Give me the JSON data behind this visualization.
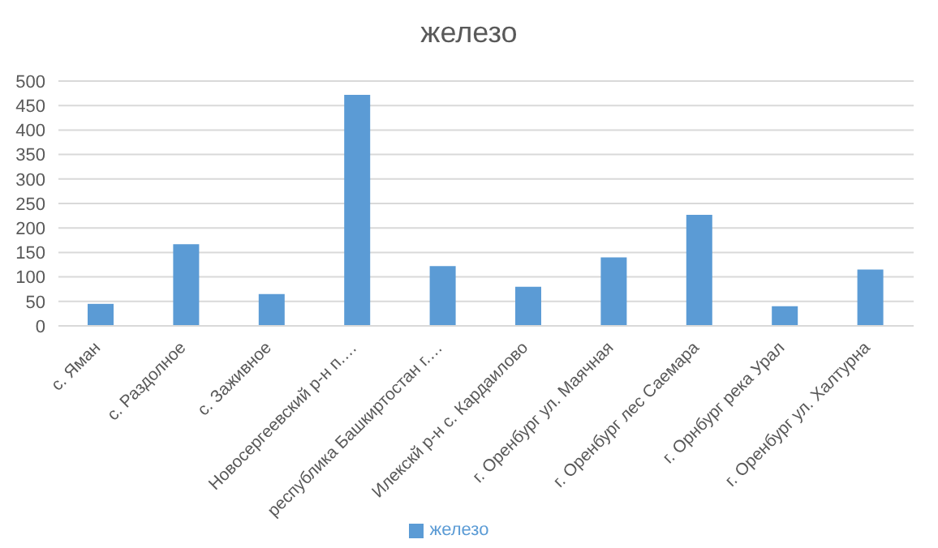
{
  "chart_data": {
    "type": "bar",
    "title": "железо",
    "categories": [
      "с. Яман",
      "с. Раздолное",
      "с. Заживное",
      "Новосергеевский р-н п.…",
      "республика Башкиртостан г.…",
      "Илекскй р-н с. Кардаилово",
      "г. Оренбург ул. Маячная",
      "г. Оренбург лес Саемара",
      "г. Орнбург река Урал",
      "г. Оренбург ул. Халтурна"
    ],
    "series": [
      {
        "name": "железо",
        "color": "#5b9bd5",
        "values": [
          45,
          167,
          65,
          472,
          122,
          80,
          140,
          227,
          40,
          115
        ]
      }
    ],
    "ylim": [
      0,
      500
    ],
    "yticks": [
      0,
      50,
      100,
      150,
      200,
      250,
      300,
      350,
      400,
      450,
      500
    ],
    "grid": "y",
    "legend": "bottom"
  }
}
